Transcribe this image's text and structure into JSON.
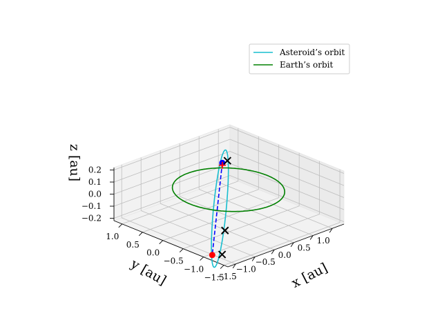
{
  "chart_data": {
    "type": "line",
    "projection": "3d",
    "title": "",
    "axes": {
      "x": {
        "label": "x [au]",
        "lim": [
          -1.7,
          1.3
        ],
        "ticks": [
          "−1.5",
          "−1.0",
          "−0.5",
          "0.0",
          "0.5",
          "1.0"
        ]
      },
      "y": {
        "label": "y [au]",
        "lim": [
          -1.6,
          1.2
        ],
        "ticks": [
          "1.0",
          "0.5",
          "0.0",
          "−0.5",
          "−1.0",
          "−1.5"
        ]
      },
      "z": {
        "label": "z [au]",
        "lim": [
          -0.22,
          0.22
        ],
        "ticks": [
          "0.2",
          "0.1",
          "0.0",
          "−0.1",
          "−0.2"
        ]
      }
    },
    "grid": true,
    "legend": {
      "placement": "top-right",
      "entries": [
        {
          "label": "Asteroid’s orbit",
          "color": "#17becf"
        },
        {
          "label": "Earth’s orbit",
          "color": "#008000"
        }
      ]
    },
    "series": [
      {
        "name": "Asteroid’s orbit",
        "kind": "ellipse",
        "color": "#17becf",
        "center": [
          -0.75,
          -0.5,
          0.0
        ],
        "major_axis": [
          1.25,
          1.05,
          0.195
        ],
        "minor_axis": [
          0.07,
          -0.09,
          0.0
        ]
      },
      {
        "name": "Earth’s orbit",
        "kind": "circle",
        "color": "#008000",
        "center": [
          0,
          0,
          0
        ],
        "radius": 1.0
      }
    ],
    "transfer": {
      "color": "#0000ff",
      "style": "dashed",
      "points": [
        [
          0.45,
          0.58,
          0.09
        ],
        [
          -2.0,
          -1.5,
          -0.1
        ]
      ]
    },
    "markers": [
      {
        "symbol": "dot",
        "color": "#ff0000",
        "position": [
          -2.0,
          -1.5,
          -0.1
        ]
      },
      {
        "symbol": "dot",
        "color": "#0000ff",
        "position": [
          0.45,
          0.58,
          0.09
        ]
      },
      {
        "symbol": "plus",
        "color": "#ff0000",
        "position": [
          0.45,
          0.58,
          0.07
        ]
      },
      {
        "symbol": "x",
        "color": "#000000",
        "position": [
          -1.85,
          -1.6,
          -0.1
        ]
      },
      {
        "symbol": "x",
        "color": "#000000",
        "position": [
          -1.25,
          -1.1,
          -0.04
        ]
      },
      {
        "symbol": "x",
        "color": "#000000",
        "position": [
          0.55,
          0.55,
          0.1
        ]
      }
    ]
  }
}
